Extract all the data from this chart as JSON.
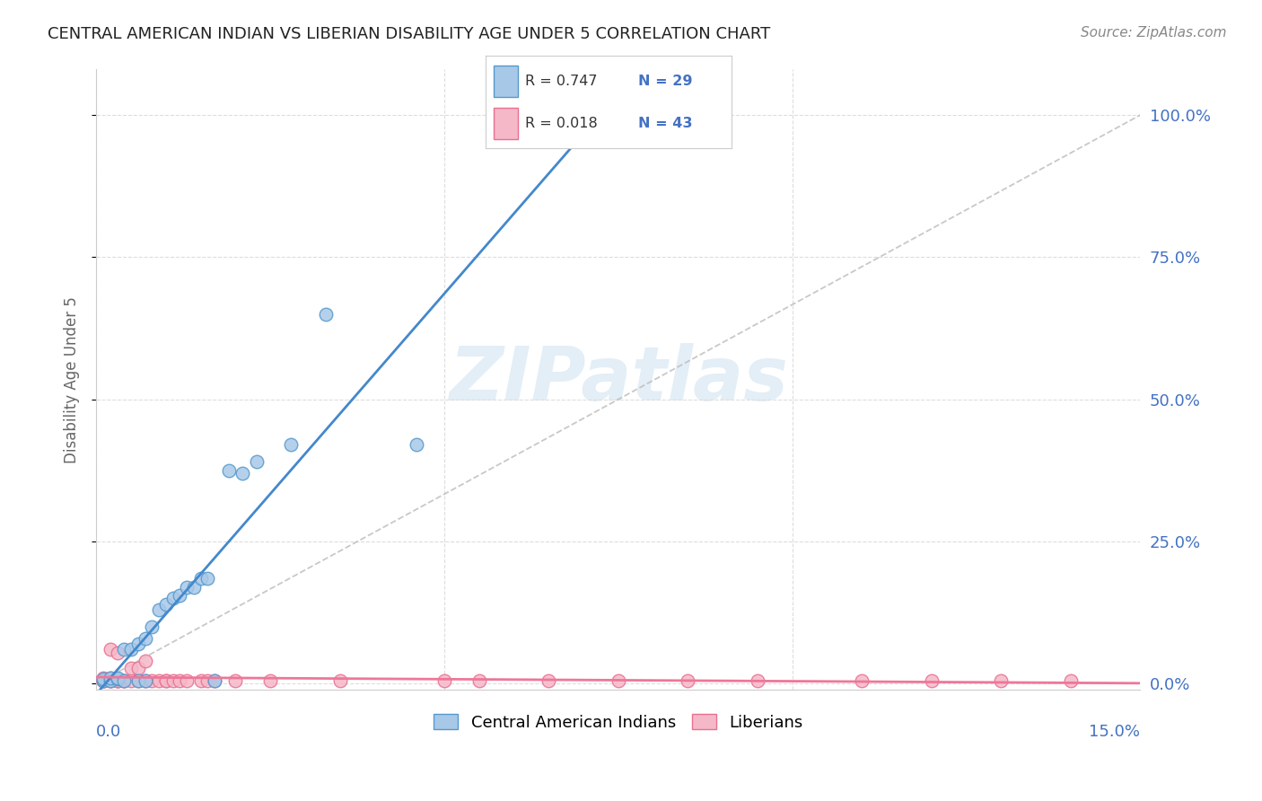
{
  "title": "CENTRAL AMERICAN INDIAN VS LIBERIAN DISABILITY AGE UNDER 5 CORRELATION CHART",
  "source": "Source: ZipAtlas.com",
  "ylabel": "Disability Age Under 5",
  "ytick_values": [
    0.0,
    0.25,
    0.5,
    0.75,
    1.0
  ],
  "xlim": [
    0.0,
    0.15
  ],
  "ylim": [
    -0.01,
    1.08
  ],
  "blue_fill": "#a8c8e8",
  "blue_edge": "#5599cc",
  "pink_fill": "#f5b8c8",
  "pink_edge": "#e87090",
  "blue_line_color": "#4488cc",
  "pink_line_color": "#ee7799",
  "dashed_line_color": "#bbbbbb",
  "legend_label_blue": "Central American Indians",
  "legend_label_pink": "Liberians",
  "tick_label_color": "#4472c4",
  "grid_color": "#dddddd",
  "blue_scatter_x": [
    0.001,
    0.001,
    0.002,
    0.002,
    0.003,
    0.003,
    0.004,
    0.004,
    0.005,
    0.006,
    0.006,
    0.007,
    0.007,
    0.008,
    0.009,
    0.01,
    0.011,
    0.012,
    0.013,
    0.014,
    0.015,
    0.016,
    0.017,
    0.019,
    0.021,
    0.023,
    0.028,
    0.033,
    0.046
  ],
  "blue_scatter_y": [
    0.005,
    0.008,
    0.005,
    0.01,
    0.008,
    0.01,
    0.005,
    0.06,
    0.06,
    0.005,
    0.07,
    0.08,
    0.005,
    0.1,
    0.13,
    0.14,
    0.15,
    0.155,
    0.17,
    0.17,
    0.185,
    0.185,
    0.005,
    0.375,
    0.37,
    0.39,
    0.42,
    0.65,
    0.42
  ],
  "pink_scatter_x": [
    0.001,
    0.001,
    0.001,
    0.001,
    0.002,
    0.002,
    0.002,
    0.002,
    0.003,
    0.003,
    0.003,
    0.004,
    0.004,
    0.005,
    0.005,
    0.006,
    0.006,
    0.007,
    0.008,
    0.009,
    0.01,
    0.01,
    0.011,
    0.012,
    0.013,
    0.015,
    0.016,
    0.017,
    0.02,
    0.025,
    0.035,
    0.05,
    0.055,
    0.065,
    0.075,
    0.085,
    0.095,
    0.11,
    0.12,
    0.13,
    0.14,
    0.003,
    0.007
  ],
  "pink_scatter_y": [
    0.005,
    0.005,
    0.005,
    0.01,
    0.005,
    0.005,
    0.01,
    0.06,
    0.005,
    0.005,
    0.055,
    0.005,
    0.005,
    0.005,
    0.028,
    0.005,
    0.028,
    0.005,
    0.005,
    0.005,
    0.005,
    0.005,
    0.005,
    0.005,
    0.005,
    0.005,
    0.005,
    0.005,
    0.005,
    0.005,
    0.005,
    0.005,
    0.005,
    0.005,
    0.005,
    0.005,
    0.005,
    0.005,
    0.005,
    0.005,
    0.005,
    0.005,
    0.04
  ],
  "watermark_text": "ZIPatlas",
  "title_fontsize": 13,
  "source_fontsize": 11
}
